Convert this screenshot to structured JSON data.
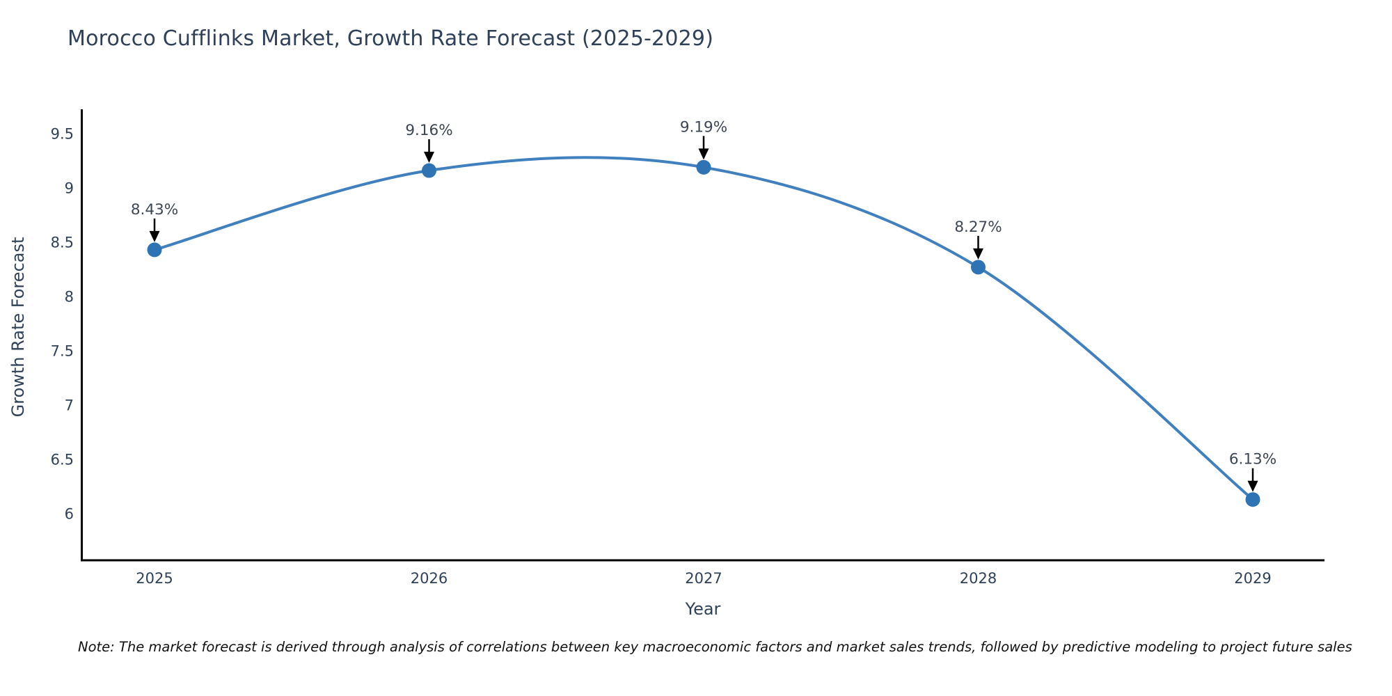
{
  "chart_data": {
    "type": "line",
    "line_shape": "spline",
    "title": "Morocco Cufflinks Market, Growth Rate Forecast (2025-2029)",
    "categories": [
      "2025",
      "2026",
      "2027",
      "2028",
      "2029"
    ],
    "values": [
      8.43,
      9.16,
      9.19,
      8.27,
      6.13
    ],
    "point_labels": [
      "8.43%",
      "9.16%",
      "9.19%",
      "8.27%",
      "6.13%"
    ],
    "xlabel": "Year",
    "ylabel": "Growth Rate Forecast",
    "yticks": [
      9.5,
      9,
      8.5,
      8,
      7.5,
      7,
      6.5,
      6
    ],
    "ylim": [
      5.57,
      9.74
    ],
    "grid": false,
    "legend": "none",
    "colors": {
      "line": "#4080bf",
      "marker": "#2e74b5",
      "axis": "#000000",
      "tick_text": "#2f4158",
      "annotation_text": "#3d4653",
      "arrow": "#000000"
    }
  },
  "footnote": "Note: The market forecast is derived through analysis of correlations between key macroeconomic factors and market sales trends, followed by predictive modeling to project future sales"
}
